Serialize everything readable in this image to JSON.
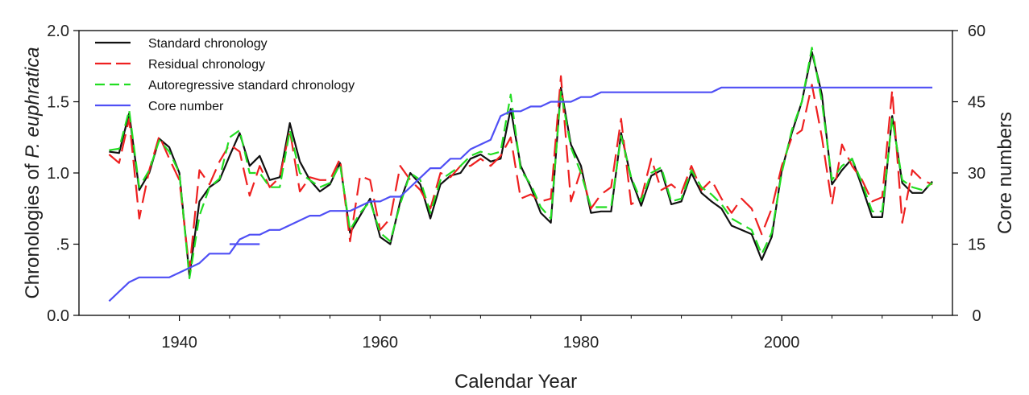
{
  "chart_data": {
    "type": "line",
    "xlabel": "Calendar Year",
    "ylabel_left": {
      "prefix": "Chronologies  of ",
      "species": "P. euphratica"
    },
    "ylabel_right": "Core numbers",
    "xlim": [
      1930,
      2017
    ],
    "ylim_left": [
      0,
      2.0
    ],
    "ylim_right": [
      0,
      60
    ],
    "x_ticks": [
      {
        "value": 1940,
        "label": "1940"
      },
      {
        "value": 1960,
        "label": "1960"
      },
      {
        "value": 1980,
        "label": "1980"
      },
      {
        "value": 2000,
        "label": "2000"
      }
    ],
    "y_left_ticks": [
      {
        "value": 0.0,
        "label": "0.0"
      },
      {
        "value": 0.5,
        "label": ".5"
      },
      {
        "value": 1.0,
        "label": "1.0"
      },
      {
        "value": 1.5,
        "label": "1.5"
      },
      {
        "value": 2.0,
        "label": "2.0"
      }
    ],
    "y_right_ticks": [
      {
        "value": 0,
        "label": "0"
      },
      {
        "value": 15,
        "label": "15"
      },
      {
        "value": 30,
        "label": "30"
      },
      {
        "value": 45,
        "label": "45"
      },
      {
        "value": 60,
        "label": "60"
      }
    ],
    "legend_position": "top-left",
    "series": [
      {
        "name": "Standard chronology",
        "axis": "left",
        "color": "#111111",
        "dash": "solid",
        "x": [
          1933,
          1934,
          1935,
          1936,
          1937,
          1938,
          1939,
          1940,
          1941,
          1942,
          1943,
          1944,
          1945,
          1946,
          1947,
          1948,
          1949,
          1950,
          1951,
          1952,
          1953,
          1954,
          1955,
          1956,
          1957,
          1958,
          1959,
          1960,
          1961,
          1962,
          1963,
          1964,
          1965,
          1966,
          1967,
          1968,
          1969,
          1970,
          1971,
          1972,
          1973,
          1974,
          1975,
          1976,
          1977,
          1978,
          1979,
          1980,
          1981,
          1982,
          1983,
          1984,
          1985,
          1986,
          1987,
          1988,
          1989,
          1990,
          1991,
          1992,
          1993,
          1994,
          1995,
          1996,
          1997,
          1998,
          1999,
          2000,
          2001,
          2002,
          2003,
          2004,
          2005,
          2006,
          2007,
          2008,
          2009,
          2010,
          2011,
          2012,
          2013,
          2014,
          2015
        ],
        "y": [
          1.15,
          1.14,
          1.42,
          0.88,
          1.0,
          1.24,
          1.18,
          1.0,
          0.28,
          0.8,
          0.9,
          0.95,
          1.12,
          1.28,
          1.05,
          1.12,
          0.95,
          0.97,
          1.35,
          1.08,
          0.95,
          0.87,
          0.92,
          1.07,
          0.58,
          0.7,
          0.82,
          0.55,
          0.5,
          0.8,
          1.0,
          0.92,
          0.68,
          0.92,
          0.98,
          1.0,
          1.1,
          1.13,
          1.08,
          1.1,
          1.45,
          1.05,
          0.9,
          0.72,
          0.65,
          1.6,
          1.2,
          1.05,
          0.72,
          0.73,
          0.73,
          1.28,
          0.96,
          0.77,
          0.98,
          1.02,
          0.78,
          0.8,
          1.0,
          0.86,
          0.8,
          0.75,
          0.63,
          0.6,
          0.57,
          0.39,
          0.55,
          1.02,
          1.28,
          1.5,
          1.85,
          1.55,
          0.92,
          1.02,
          1.1,
          0.9,
          0.69,
          0.69,
          1.4,
          0.93,
          0.86,
          0.86,
          0.94
        ]
      },
      {
        "name": "Residual chronology",
        "axis": "left",
        "color": "#ee2020",
        "dash": "long-dash",
        "x": [
          1933,
          1934,
          1935,
          1936,
          1937,
          1938,
          1939,
          1940,
          1941,
          1942,
          1943,
          1944,
          1945,
          1946,
          1947,
          1948,
          1949,
          1950,
          1951,
          1952,
          1953,
          1954,
          1955,
          1956,
          1957,
          1958,
          1959,
          1960,
          1961,
          1962,
          1963,
          1964,
          1965,
          1966,
          1967,
          1968,
          1969,
          1970,
          1971,
          1972,
          1973,
          1974,
          1975,
          1976,
          1977,
          1978,
          1979,
          1980,
          1981,
          1982,
          1983,
          1984,
          1985,
          1986,
          1987,
          1988,
          1989,
          1990,
          1991,
          1992,
          1993,
          1994,
          1995,
          1996,
          1997,
          1998,
          1999,
          2000,
          2001,
          2002,
          2003,
          2004,
          2005,
          2006,
          2007,
          2008,
          2009,
          2010,
          2011,
          2012,
          2013,
          2014,
          2015
        ],
        "y": [
          1.13,
          1.07,
          1.38,
          0.68,
          1.02,
          1.26,
          1.1,
          0.95,
          0.32,
          1.02,
          0.92,
          1.08,
          1.2,
          1.15,
          0.84,
          1.05,
          0.9,
          0.97,
          1.3,
          0.87,
          0.97,
          0.95,
          0.95,
          1.1,
          0.52,
          0.98,
          0.95,
          0.6,
          0.68,
          1.05,
          0.95,
          0.88,
          0.75,
          1.0,
          0.97,
          1.05,
          1.05,
          1.1,
          1.05,
          1.12,
          1.25,
          0.82,
          0.85,
          0.8,
          0.82,
          1.68,
          0.8,
          1.02,
          0.75,
          0.85,
          0.9,
          1.38,
          0.78,
          0.82,
          1.1,
          0.88,
          0.92,
          0.86,
          1.05,
          0.88,
          0.95,
          0.82,
          0.72,
          0.82,
          0.75,
          0.57,
          0.75,
          1.05,
          1.25,
          1.3,
          1.62,
          1.25,
          0.78,
          1.2,
          1.05,
          0.95,
          0.8,
          0.83,
          1.58,
          0.65,
          1.02,
          0.95,
          0.92
        ]
      },
      {
        "name": "Autoregressive standard chronology",
        "axis": "left",
        "color": "#22dd22",
        "dash": "dash",
        "x": [
          1933,
          1934,
          1935,
          1936,
          1937,
          1938,
          1939,
          1940,
          1941,
          1942,
          1943,
          1944,
          1945,
          1946,
          1947,
          1948,
          1949,
          1950,
          1951,
          1952,
          1953,
          1954,
          1955,
          1956,
          1957,
          1958,
          1959,
          1960,
          1961,
          1962,
          1963,
          1964,
          1965,
          1966,
          1967,
          1968,
          1969,
          1970,
          1971,
          1972,
          1973,
          1974,
          1975,
          1976,
          1977,
          1978,
          1979,
          1980,
          1981,
          1982,
          1983,
          1984,
          1985,
          1986,
          1987,
          1988,
          1989,
          1990,
          1991,
          1992,
          1993,
          1994,
          1995,
          1996,
          1997,
          1998,
          1999,
          2000,
          2001,
          2002,
          2003,
          2004,
          2005,
          2006,
          2007,
          2008,
          2009,
          2010,
          2011,
          2012,
          2013,
          2014,
          2015
        ],
        "y": [
          1.16,
          1.17,
          1.44,
          0.9,
          1.02,
          1.23,
          1.15,
          1.0,
          0.26,
          0.7,
          0.9,
          0.96,
          1.25,
          1.3,
          1.0,
          1.0,
          0.9,
          0.9,
          1.3,
          1.0,
          0.95,
          0.9,
          0.93,
          1.06,
          0.6,
          0.72,
          0.8,
          0.58,
          0.52,
          0.78,
          1.0,
          0.95,
          0.72,
          0.95,
          1.0,
          1.05,
          1.12,
          1.15,
          1.13,
          1.15,
          1.55,
          1.02,
          0.92,
          0.76,
          0.68,
          1.57,
          1.18,
          1.0,
          0.76,
          0.76,
          0.76,
          1.26,
          0.97,
          0.8,
          1.0,
          1.04,
          0.8,
          0.82,
          1.02,
          0.9,
          0.85,
          0.78,
          0.68,
          0.64,
          0.6,
          0.43,
          0.58,
          1.0,
          1.3,
          1.5,
          1.88,
          1.5,
          0.95,
          1.05,
          1.1,
          0.93,
          0.73,
          0.73,
          1.38,
          0.95,
          0.9,
          0.88,
          0.93
        ]
      },
      {
        "name": "Core number",
        "axis": "right",
        "color": "#4f4ff5",
        "dash": "solid",
        "x": [
          1933,
          1934,
          1935,
          1936,
          1937,
          1938,
          1939,
          1940,
          1941,
          1942,
          1943,
          1944,
          1945,
          1946,
          1947,
          1948,
          1949,
          1950,
          1951,
          1952,
          1953,
          1954,
          1955,
          1956,
          1957,
          1958,
          1959,
          1960,
          1961,
          1962,
          1963,
          1964,
          1965,
          1966,
          1967,
          1968,
          1969,
          1970,
          1971,
          1972,
          1973,
          1974,
          1975,
          1976,
          1977,
          1978,
          1979,
          1980,
          1981,
          1982,
          1983,
          1984,
          1985,
          1986,
          1987,
          1988,
          1989,
          1990,
          1991,
          1992,
          1993,
          1994,
          1995,
          1996,
          1997,
          1998,
          1999,
          2000,
          2001,
          2002,
          2003,
          2004,
          2005,
          2006,
          2007,
          2008,
          2009,
          2010,
          2011,
          2012,
          2013,
          2014,
          2015
        ],
        "y": [
          3,
          5,
          7,
          8,
          8,
          8,
          8,
          9,
          10,
          11,
          13,
          13,
          13,
          16,
          17,
          17,
          18,
          18,
          19,
          20,
          21,
          21,
          22,
          22,
          22,
          23,
          24,
          24,
          25,
          25,
          27,
          29,
          31,
          31,
          33,
          33,
          35,
          36,
          37,
          42,
          43,
          43,
          44,
          44,
          45,
          45,
          45,
          46,
          46,
          47,
          47,
          47,
          47,
          47,
          47,
          47,
          47,
          47,
          47,
          47,
          47,
          48,
          48,
          48,
          48,
          48,
          48,
          48,
          48,
          48,
          48,
          48,
          48,
          48,
          48,
          48,
          48,
          48,
          48,
          48,
          48,
          48,
          48
        ]
      }
    ],
    "legend_extra_segment": {
      "x": [
        1945,
        1948
      ],
      "y": [
        15,
        15
      ]
    }
  }
}
